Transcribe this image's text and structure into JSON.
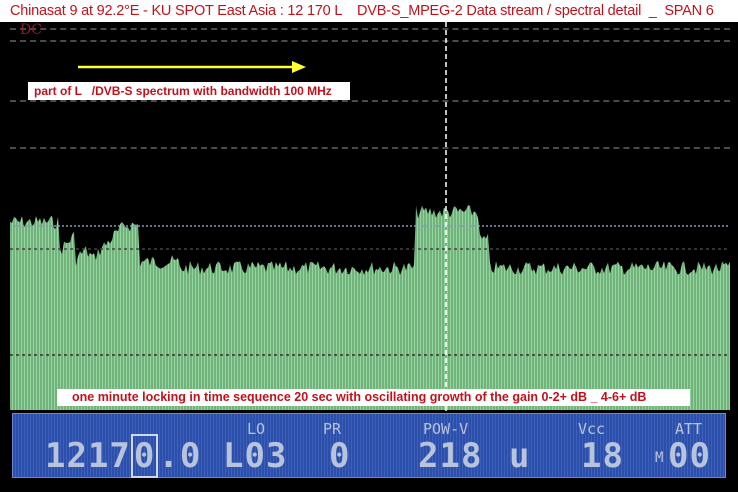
{
  "title": "Chinasat 9 at 92.2°E - KU SPOT East Asia : 12 170 L    DVB-S_MPEG-2 Data stream / spectral detail  _  SPAN 6",
  "screen": {
    "corner_label": "DC",
    "annotation_top": "part of L   /DVB-S spectrum with bandwidth 100 MHz",
    "annotation_bottom": "one minute locking in time sequence 20 sec with oscillating growth of the gain 0-2+ dB _ 4-6+ dB",
    "arrow_color": "#ffff33",
    "trace_color": "#8fd89a",
    "marker_color": "#ffffff"
  },
  "panel": {
    "freq_prefix": "1217",
    "freq_cursor_digit": "0",
    "freq_suffix": ".0",
    "lo_label": "LO",
    "lo_value": "L03",
    "pr_label": "PR",
    "pr_value": "0",
    "pow_label": "POW-V",
    "pow_value": "218",
    "pow_unit": "u",
    "vcc_label": "Vcc",
    "vcc_value": "18",
    "att_label": "ATT",
    "att_prefix": "M",
    "att_value": "00"
  }
}
